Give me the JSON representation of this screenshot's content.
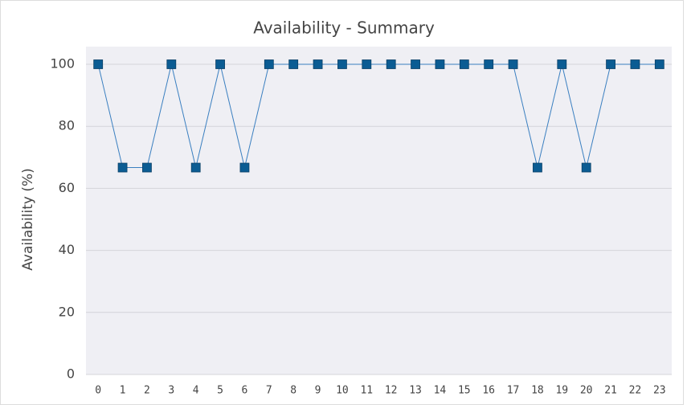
{
  "chart_data": {
    "type": "line",
    "title": "Availability - Summary",
    "ylabel": "Availability (%)",
    "categories": [
      "0",
      "1",
      "2",
      "3",
      "4",
      "5",
      "6",
      "7",
      "8",
      "9",
      "10",
      "11",
      "12",
      "13",
      "14",
      "15",
      "16",
      "17",
      "18",
      "19",
      "20",
      "21",
      "22",
      "23"
    ],
    "series": [
      {
        "name": "Availability",
        "color": "#0b5c93",
        "values": [
          100,
          66.7,
          66.7,
          100,
          66.7,
          100,
          66.7,
          100,
          100,
          100,
          100,
          100,
          100,
          100,
          100,
          100,
          100,
          100,
          66.7,
          100,
          66.7,
          100,
          100,
          100
        ]
      }
    ],
    "ylim": [
      0,
      100
    ],
    "yticks": [
      0,
      20,
      40,
      60,
      80,
      100
    ],
    "grid": true
  }
}
